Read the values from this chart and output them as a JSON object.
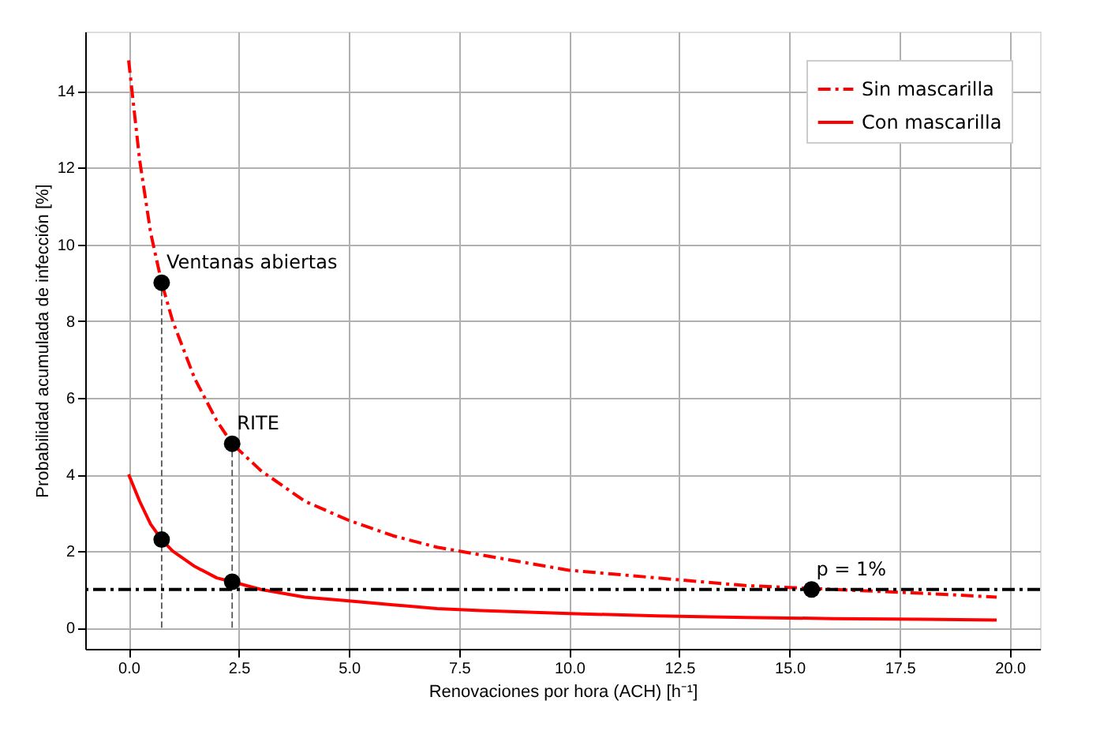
{
  "chart_data": {
    "type": "line",
    "xlabel": "Renovaciones por hora (ACH) [h⁻¹]",
    "ylabel": "Probabilidad acumulada de infección [%]",
    "xlim": [
      -0.985,
      20.685
    ],
    "ylim": [
      -0.55,
      15.55
    ],
    "xticks": [
      {
        "value": 0,
        "label": "0.0"
      },
      {
        "value": 2.5,
        "label": "2.5"
      },
      {
        "value": 5,
        "label": "5.0"
      },
      {
        "value": 7.5,
        "label": "7.5"
      },
      {
        "value": 10,
        "label": "10.0"
      },
      {
        "value": 12.5,
        "label": "12.5"
      },
      {
        "value": 15,
        "label": "15.0"
      },
      {
        "value": 17.5,
        "label": "17.5"
      },
      {
        "value": 20,
        "label": "20.0"
      }
    ],
    "yticks": [
      0,
      2,
      4,
      6,
      8,
      10,
      12,
      14
    ],
    "grid": true,
    "legend": "top right",
    "series": [
      {
        "name": "Sin mascarilla",
        "color": "#ff0000",
        "line_style": "dashed",
        "marker": "none",
        "x": [
          0,
          0.25,
          0.5,
          0.75,
          1,
          1.5,
          2,
          2.35,
          3,
          4,
          5,
          6,
          7,
          8,
          10,
          12,
          14,
          16,
          18,
          19.7
        ],
        "values": [
          14.8,
          12.2,
          10.3,
          9.0,
          8.0,
          6.5,
          5.4,
          4.8,
          4.1,
          3.3,
          2.8,
          2.4,
          2.1,
          1.9,
          1.5,
          1.3,
          1.1,
          1.0,
          0.9,
          0.8
        ]
      },
      {
        "name": "Con mascarilla",
        "color": "#ff0000",
        "line_style": "solid",
        "marker": "none",
        "x": [
          0,
          0.25,
          0.5,
          0.75,
          1,
          1.5,
          2,
          2.35,
          3,
          4,
          5,
          6,
          7,
          8,
          10,
          12,
          14,
          16,
          18,
          19.7
        ],
        "values": [
          4.0,
          3.3,
          2.7,
          2.3,
          2.0,
          1.6,
          1.3,
          1.2,
          1.0,
          0.8,
          0.7,
          0.6,
          0.5,
          0.45,
          0.37,
          0.31,
          0.27,
          0.24,
          0.22,
          0.2
        ]
      },
      {
        "color": "#555555",
        "line_style": "dashed",
        "marker": "none",
        "x": [
          0.75,
          0.75
        ],
        "values": [
          0,
          9.0
        ]
      },
      {
        "color": "#555555",
        "line_style": "dashed",
        "marker": "none",
        "x": [
          2.35,
          2.35
        ],
        "values": [
          0,
          4.8
        ]
      },
      {
        "type": "scatter",
        "color": "#000000",
        "marker": "circle",
        "x": [
          0.75,
          2.35,
          0.75,
          2.35,
          15.5
        ],
        "values": [
          9.0,
          4.8,
          2.3,
          1.2,
          1.0
        ]
      }
    ],
    "ref_lines": [
      {
        "axis": "y",
        "value": 1,
        "color": "#000000",
        "line_style": "dashed"
      }
    ],
    "annotations": [
      {
        "text": "Ventanas abiertas",
        "x": 0.75,
        "y": 9.0
      },
      {
        "text": "RITE",
        "x": 2.35,
        "y": 4.8
      },
      {
        "text": "p = 1%",
        "x": 15.5,
        "y": 1
      }
    ]
  }
}
